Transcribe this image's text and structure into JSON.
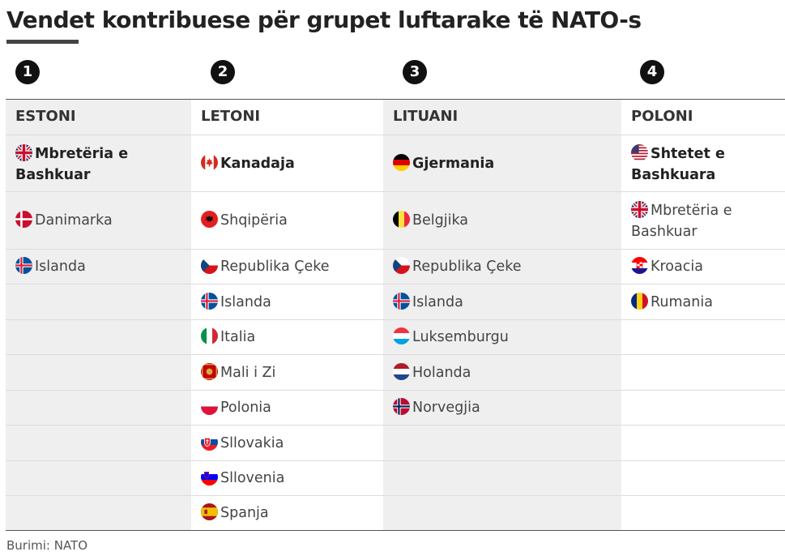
{
  "title": "Vendet kontribuese për grupet luftarake të NATO-s",
  "source": "Burimi: NATO",
  "columns": [
    {
      "number": "1",
      "header": "ESTONI",
      "leader": {
        "name": "Mbretëria e Bashkuar",
        "flag": "gb"
      },
      "members": [
        {
          "name": "Danimarka",
          "flag": "dk"
        },
        {
          "name": "Islanda",
          "flag": "is"
        }
      ]
    },
    {
      "number": "2",
      "header": "LETONI",
      "leader": {
        "name": "Kanadaja",
        "flag": "ca"
      },
      "members": [
        {
          "name": "Shqipëria",
          "flag": "al"
        },
        {
          "name": "Republika Çeke",
          "flag": "cz"
        },
        {
          "name": "Islanda",
          "flag": "is"
        },
        {
          "name": "Italia",
          "flag": "it"
        },
        {
          "name": "Mali i Zi",
          "flag": "me"
        },
        {
          "name": "Polonia",
          "flag": "pl"
        },
        {
          "name": "Sllovakia",
          "flag": "sk"
        },
        {
          "name": "Sllovenia",
          "flag": "si"
        },
        {
          "name": "Spanja",
          "flag": "es"
        }
      ]
    },
    {
      "number": "3",
      "header": "LITUANI",
      "leader": {
        "name": "Gjermania",
        "flag": "de"
      },
      "members": [
        {
          "name": "Belgjika",
          "flag": "be"
        },
        {
          "name": "Republika Çeke",
          "flag": "cz"
        },
        {
          "name": "Islanda",
          "flag": "is"
        },
        {
          "name": "Luksemburgu",
          "flag": "lu"
        },
        {
          "name": "Holanda",
          "flag": "nl"
        },
        {
          "name": "Norvegjia",
          "flag": "no"
        }
      ]
    },
    {
      "number": "4",
      "header": "POLONI",
      "leader": {
        "name": "Shtetet e Bashkuara",
        "flag": "us"
      },
      "members": [
        {
          "name": "Mbretëria e Bashkuar",
          "flag": "gb"
        },
        {
          "name": "Kroacia",
          "flag": "hr"
        },
        {
          "name": "Rumania",
          "flag": "ro"
        }
      ]
    }
  ]
}
